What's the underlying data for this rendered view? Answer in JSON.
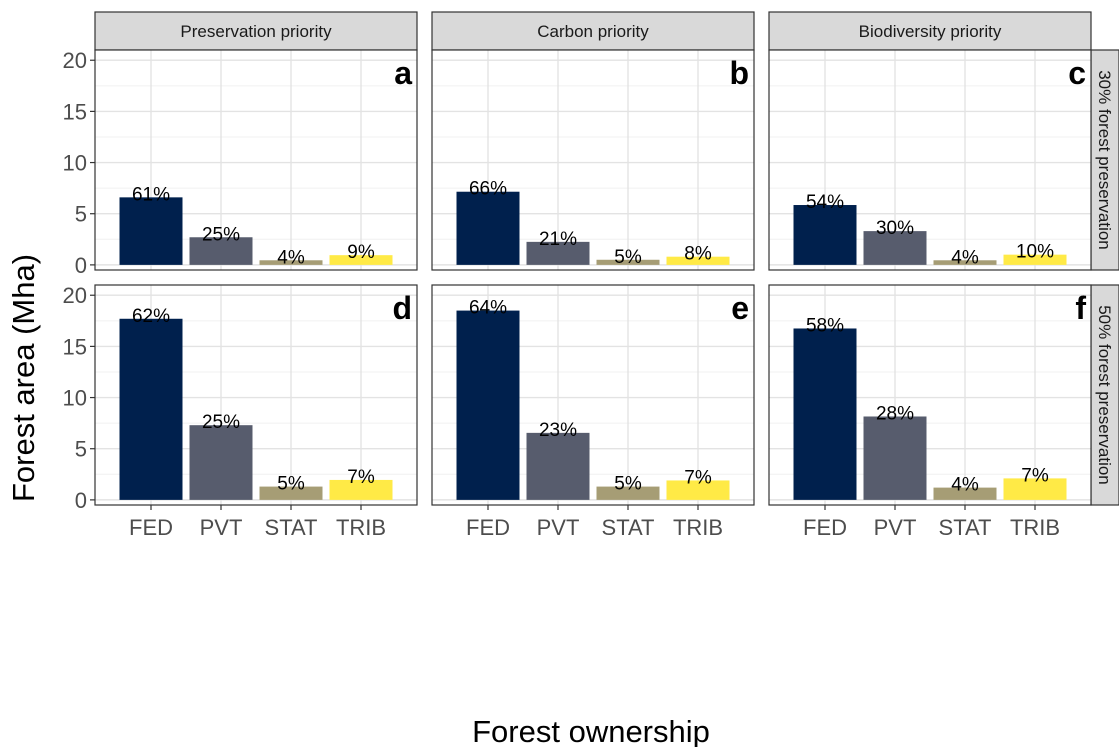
{
  "chart_data": {
    "type": "bar",
    "ylabel": "Forest area (Mha)",
    "xlabel": "Forest ownership",
    "categories": [
      "FED",
      "PVT",
      "STAT",
      "TRIB"
    ],
    "ylim": [
      -0.5,
      21
    ],
    "yticks": [
      0,
      5,
      10,
      15,
      20
    ],
    "grid": true,
    "colors": {
      "FED": "#00204d",
      "PVT": "#575c6d",
      "STAT": "#a69d75",
      "TRIB": "#ffea46"
    },
    "columns": [
      "Preservation priority",
      "Carbon priority",
      "Biodiversity priority"
    ],
    "rows": [
      "30% forest preservation",
      "50% forest preservation"
    ],
    "panels": [
      {
        "letter": "a",
        "col": 0,
        "row": 0,
        "values": [
          6.6,
          2.7,
          0.45,
          0.95
        ],
        "labels": [
          "61%",
          "25%",
          "4%",
          "9%"
        ]
      },
      {
        "letter": "b",
        "col": 1,
        "row": 0,
        "values": [
          7.15,
          2.25,
          0.5,
          0.8
        ],
        "labels": [
          "66%",
          "21%",
          "5%",
          "8%"
        ]
      },
      {
        "letter": "c",
        "col": 2,
        "row": 0,
        "values": [
          5.85,
          3.3,
          0.45,
          1.0
        ],
        "labels": [
          "54%",
          "30%",
          "4%",
          "10%"
        ]
      },
      {
        "letter": "d",
        "col": 0,
        "row": 1,
        "values": [
          17.7,
          7.3,
          1.3,
          1.95
        ],
        "labels": [
          "62%",
          "25%",
          "5%",
          "7%"
        ]
      },
      {
        "letter": "e",
        "col": 1,
        "row": 1,
        "values": [
          18.5,
          6.55,
          1.3,
          1.9
        ],
        "labels": [
          "64%",
          "23%",
          "5%",
          "7%"
        ]
      },
      {
        "letter": "f",
        "col": 2,
        "row": 1,
        "values": [
          16.75,
          8.15,
          1.2,
          2.1
        ],
        "labels": [
          "58%",
          "28%",
          "4%",
          "7%"
        ]
      }
    ]
  }
}
